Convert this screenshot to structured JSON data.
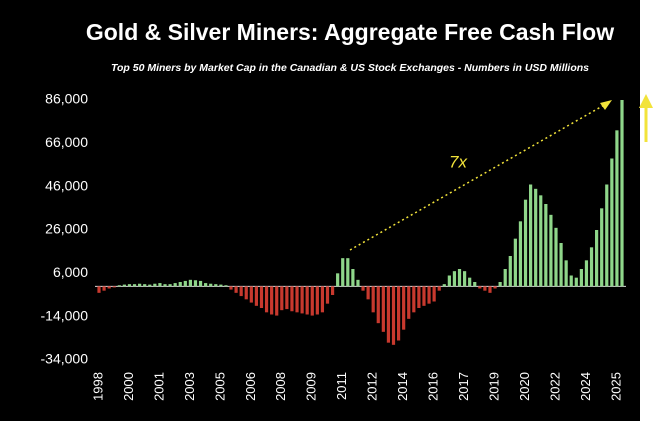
{
  "chart_data": {
    "type": "bar",
    "title": "Gold & Silver Miners: Aggregate Free Cash Flow",
    "subtitle": "Top 50 Miners by Market Cap in the Canadian & US Stock Exchanges - Numbers in USD Millions",
    "annotation": "7x",
    "positive_color": "#8fd68a",
    "negative_color": "#c8392e",
    "categories": [
      "1998",
      null,
      null,
      null,
      null,
      null,
      "2000",
      null,
      null,
      null,
      null,
      null,
      "2001",
      null,
      null,
      null,
      null,
      null,
      "2003",
      null,
      null,
      null,
      null,
      null,
      "2005",
      null,
      null,
      null,
      null,
      null,
      "2006",
      null,
      null,
      null,
      null,
      null,
      "2008",
      null,
      null,
      null,
      null,
      null,
      "2009",
      null,
      null,
      null,
      null,
      null,
      "2011",
      null,
      null,
      null,
      null,
      null,
      "2012",
      null,
      null,
      null,
      null,
      null,
      "2014",
      null,
      null,
      null,
      null,
      null,
      "2016",
      null,
      null,
      null,
      null,
      null,
      "2017",
      null,
      null,
      null,
      null,
      null,
      "2019",
      null,
      null,
      null,
      null,
      null,
      "2020",
      null,
      null,
      null,
      null,
      null,
      "2022",
      null,
      null,
      null,
      null,
      null,
      "2024",
      null,
      null,
      null,
      null,
      null,
      "2025",
      null
    ],
    "values": [
      -3000,
      -2000,
      -1000,
      -500,
      500,
      800,
      1000,
      1000,
      1200,
      1000,
      800,
      1200,
      1500,
      1000,
      1000,
      1500,
      2000,
      2500,
      3000,
      2800,
      2500,
      1500,
      1200,
      1000,
      800,
      500,
      -1500,
      -3000,
      -4500,
      -6000,
      -7500,
      -9000,
      -10000,
      -12000,
      -13000,
      -13500,
      -11000,
      -10500,
      -11500,
      -12000,
      -12500,
      -13000,
      -13500,
      -13000,
      -12000,
      -8000,
      -4000,
      6000,
      13000,
      13000,
      8000,
      3000,
      -2000,
      -6000,
      -12000,
      -17000,
      -21000,
      -26000,
      -27000,
      -25000,
      -20000,
      -15000,
      -12000,
      -10000,
      -9000,
      -8000,
      -7000,
      -2000,
      1000,
      5000,
      7000,
      8000,
      7000,
      4000,
      2000,
      -1000,
      -2000,
      -3000,
      -1000,
      2000,
      8000,
      14000,
      22000,
      30000,
      40000,
      47000,
      45000,
      42000,
      38000,
      33000,
      27000,
      20000,
      12000,
      5000,
      4000,
      8000,
      12000,
      18000,
      26000,
      36000,
      47000,
      59000,
      72000,
      86000
    ],
    "ylim": [
      -34000,
      86000
    ],
    "yticks": [
      {
        "value": -34000,
        "label": "-34,000"
      },
      {
        "value": -14000,
        "label": "-14,000"
      },
      {
        "value": 6000,
        "label": "6,000"
      },
      {
        "value": 26000,
        "label": "26,000"
      },
      {
        "value": 46000,
        "label": "46,000"
      },
      {
        "value": 66000,
        "label": "66,000"
      },
      {
        "value": 86000,
        "label": "86,000"
      }
    ]
  }
}
